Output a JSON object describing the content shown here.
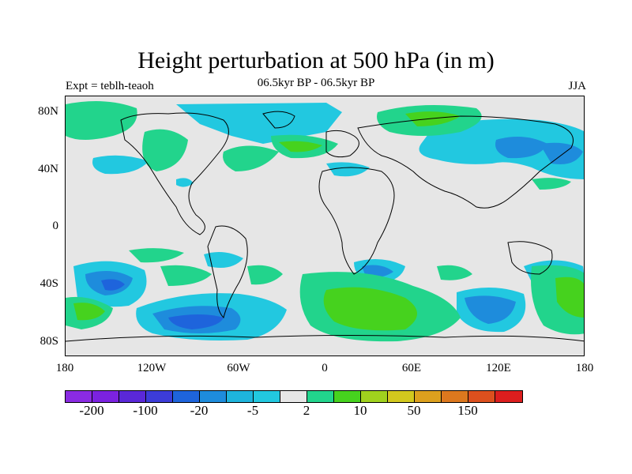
{
  "title": "Height perturbation at 500 hPa (in m)",
  "subtitle": "06.5kyr BP - 06.5kyr BP",
  "left_label": "Expt = teblh-teaoh",
  "right_label": "JJA",
  "y_ticks": [
    "80N",
    "40N",
    "0",
    "40S",
    "80S"
  ],
  "x_ticks": [
    "180",
    "120W",
    "60W",
    "0",
    "60E",
    "120E",
    "180"
  ],
  "map_extent": {
    "lon": [
      -180,
      180
    ],
    "lat": [
      -90,
      90
    ]
  },
  "colorbar": {
    "colors": [
      "#8a2be2",
      "#7b22e0",
      "#5a28d8",
      "#3c3cd8",
      "#1e64dc",
      "#1e8cdc",
      "#1eb4dc",
      "#22c8e0",
      "#e6e6e6",
      "#22d48c",
      "#46d21e",
      "#a0d21e",
      "#d2c81e",
      "#dca01e",
      "#dc781e",
      "#dc501e",
      "#dc1e1e"
    ],
    "labels": [
      {
        "text": "-200",
        "after_box": 1
      },
      {
        "text": "-100",
        "after_box": 3
      },
      {
        "text": "-20",
        "after_box": 5
      },
      {
        "text": "-5",
        "after_box": 7
      },
      {
        "text": "2",
        "after_box": 9
      },
      {
        "text": "10",
        "after_box": 11
      },
      {
        "text": "50",
        "after_box": 13
      },
      {
        "text": "150",
        "after_box": 15
      }
    ]
  }
}
